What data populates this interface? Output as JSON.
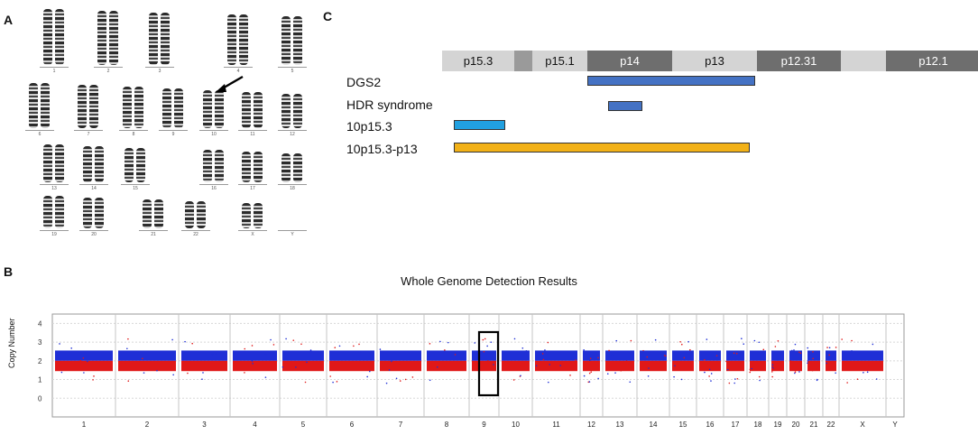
{
  "panel_letters": {
    "a": "A",
    "b": "B",
    "c": "C"
  },
  "karyotype": {
    "rows": [
      {
        "labels": [
          "1",
          "2",
          "3",
          "4",
          "5"
        ]
      },
      {
        "labels": [
          "6",
          "7",
          "8",
          "9",
          "10",
          "11",
          "12"
        ]
      },
      {
        "labels": [
          "13",
          "14",
          "15",
          "16",
          "17",
          "18"
        ]
      },
      {
        "labels": [
          "19",
          "20",
          "21",
          "22",
          "X",
          "Y"
        ]
      }
    ],
    "arrow_target": "10"
  },
  "cytoband": {
    "bands": [
      {
        "label": "p15.3",
        "color": "#d4d4d4"
      },
      {
        "label": "",
        "color": "#9a9a9a"
      },
      {
        "label": "p15.1",
        "color": "#d4d4d4"
      },
      {
        "label": "p14",
        "color": "#6e6e6e"
      },
      {
        "label": "p13",
        "color": "#d4d4d4"
      },
      {
        "label": "p12.31",
        "color": "#6e6e6e"
      },
      {
        "label": "",
        "color": "#d4d4d4"
      },
      {
        "label": "p12.1",
        "color": "#6e6e6e"
      }
    ],
    "regions": [
      {
        "label": "DGS2",
        "color": "#4472c4"
      },
      {
        "label": "HDR syndrome",
        "color": "#4472c4"
      },
      {
        "label": "10p15.3",
        "color": "#21a0e0"
      },
      {
        "label": "10p15.3-p13",
        "color": "#f2b117"
      }
    ]
  },
  "chart_data": {
    "type": "scatter",
    "title": "Whole Genome Detection Results",
    "ylabel": "Copy Number",
    "yticks": [
      "4",
      "3",
      "2",
      "1",
      "0"
    ],
    "ylim": [
      -1,
      4.5
    ],
    "chromosomes": [
      "1",
      "2",
      "3",
      "4",
      "5",
      "6",
      "7",
      "8",
      "9",
      "10",
      "11",
      "12",
      "13",
      "14",
      "15",
      "16",
      "17",
      "18",
      "19",
      "20",
      "21",
      "22",
      "X",
      "Y"
    ],
    "baseline_copy_number": 2,
    "highlighted_region": "9-10 boundary",
    "colors": {
      "upper": "#1f2fd6",
      "lower": "#e01818"
    }
  }
}
